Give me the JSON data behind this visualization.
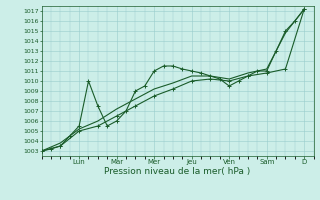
{
  "xlabel": "Pression niveau de la mer( hPa )",
  "bg_color": "#cceee8",
  "grid_color": "#99cccc",
  "line_color": "#1a5c2a",
  "ylim": [
    1002.5,
    1017.5
  ],
  "yticks": [
    1003,
    1004,
    1005,
    1006,
    1007,
    1008,
    1009,
    1010,
    1011,
    1012,
    1013,
    1014,
    1015,
    1016,
    1017
  ],
  "day_labels": [
    "Lun",
    "Mar",
    "Mer",
    "Jeu",
    "Ven",
    "Sam",
    "D"
  ],
  "day_positions": [
    24,
    48,
    72,
    96,
    120,
    144,
    168
  ],
  "xlim": [
    0,
    174
  ],
  "series1_x": [
    0,
    6,
    12,
    18,
    24,
    30,
    36,
    42,
    48,
    54,
    60,
    66,
    72,
    78,
    84,
    90,
    96,
    102,
    108,
    114,
    120,
    126,
    132,
    138,
    144,
    150,
    156,
    162,
    168
  ],
  "series1_y": [
    1003.0,
    1003.2,
    1003.5,
    1004.5,
    1005.5,
    1010.0,
    1007.5,
    1005.5,
    1006.0,
    1007.0,
    1009.0,
    1009.5,
    1011.0,
    1011.5,
    1011.5,
    1011.2,
    1011.0,
    1010.8,
    1010.5,
    1010.2,
    1009.5,
    1010.0,
    1010.5,
    1011.0,
    1011.0,
    1013.0,
    1015.0,
    1016.0,
    1017.2
  ],
  "series2_x": [
    0,
    12,
    24,
    36,
    48,
    60,
    72,
    84,
    96,
    108,
    120,
    132,
    144,
    156,
    168
  ],
  "series2_y": [
    1003.0,
    1003.5,
    1005.0,
    1005.5,
    1006.5,
    1007.5,
    1008.5,
    1009.2,
    1010.0,
    1010.2,
    1010.0,
    1010.5,
    1010.8,
    1011.2,
    1017.2
  ],
  "series3_x": [
    0,
    12,
    24,
    36,
    48,
    60,
    72,
    84,
    96,
    108,
    120,
    132,
    144,
    156,
    168
  ],
  "series3_y": [
    1003.0,
    1003.8,
    1005.2,
    1006.0,
    1007.2,
    1008.2,
    1009.2,
    1009.8,
    1010.5,
    1010.5,
    1010.2,
    1010.8,
    1011.2,
    1014.8,
    1017.2
  ]
}
